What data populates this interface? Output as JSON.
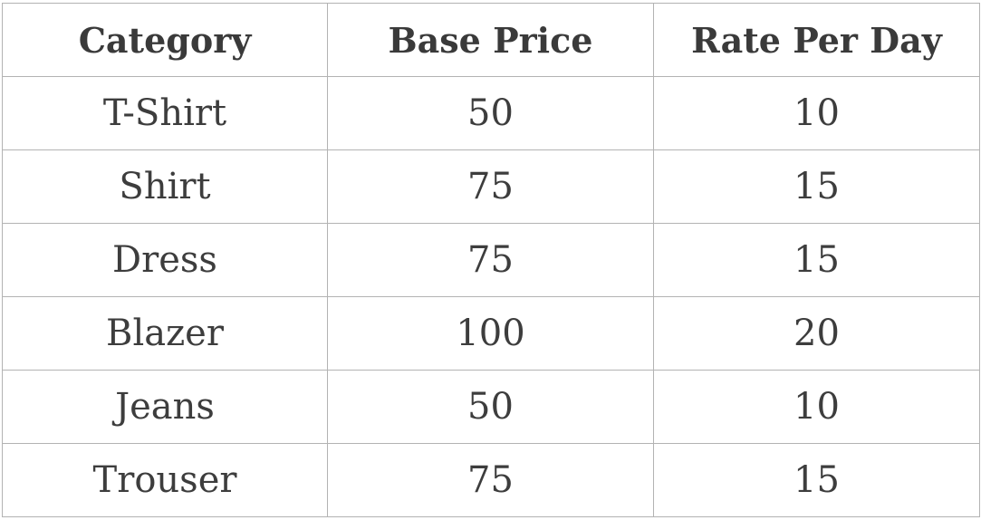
{
  "table": {
    "headers": [
      "Category",
      "Base Price",
      "Rate Per Day"
    ],
    "rows": [
      [
        "T-Shirt",
        "50",
        "10"
      ],
      [
        "Shirt",
        "75",
        "15"
      ],
      [
        "Dress",
        "75",
        "15"
      ],
      [
        "Blazer",
        "100",
        "20"
      ],
      [
        "Jeans",
        "50",
        "10"
      ],
      [
        "Trouser",
        "75",
        "15"
      ]
    ]
  },
  "colors": {
    "border": "#b3b3b3",
    "text": "#3d3d3d",
    "background": "#ffffff"
  }
}
